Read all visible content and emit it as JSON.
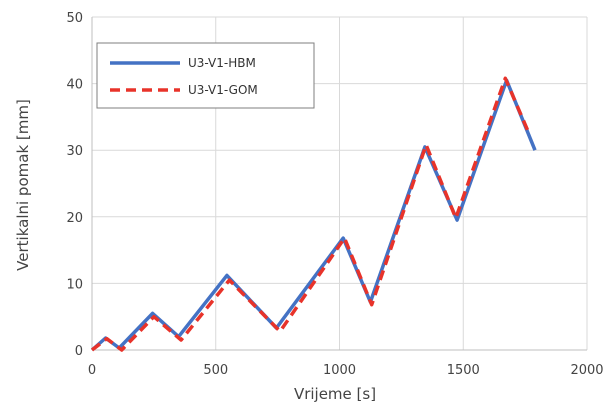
{
  "chart_data": {
    "type": "line",
    "xlabel": "Vrijeme [s]",
    "ylabel": "Vertikalni pomak [mm]",
    "xlim": [
      0,
      2000
    ],
    "ylim": [
      0,
      50
    ],
    "xticks": [
      0,
      500,
      1000,
      1500,
      2000
    ],
    "yticks": [
      0,
      10,
      20,
      30,
      40,
      50
    ],
    "grid": true,
    "legend_position": "top-left",
    "series": [
      {
        "name": "U3-V1-HBM",
        "color": "#4472C4",
        "style": "solid",
        "x": [
          0,
          55,
          110,
          245,
          350,
          545,
          745,
          1015,
          1125,
          1345,
          1475,
          1675,
          1790
        ],
        "y": [
          0,
          1.8,
          0.3,
          5.5,
          2,
          11.2,
          3.3,
          16.8,
          7.2,
          30.5,
          19.5,
          40.5,
          30
        ]
      },
      {
        "name": "U3-V1-GOM",
        "color": "#E8332A",
        "style": "dashed",
        "x": [
          0,
          60,
          120,
          250,
          360,
          555,
          760,
          1020,
          1130,
          1350,
          1470,
          1670,
          1760
        ],
        "y": [
          0,
          1.7,
          0,
          5,
          1.5,
          10.5,
          2.8,
          16.8,
          6.8,
          30.8,
          19.8,
          40.8,
          33
        ]
      }
    ]
  }
}
